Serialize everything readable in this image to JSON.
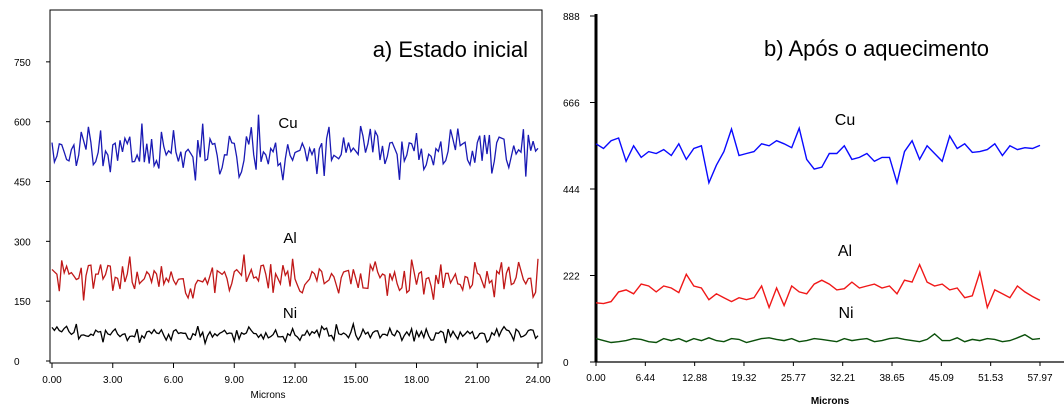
{
  "chart_data": [
    {
      "type": "line",
      "title": "a) Estado inicial",
      "xlabel": "Microns",
      "ylabel": "",
      "xlim": [
        0,
        24
      ],
      "ylim": [
        0,
        880
      ],
      "x_ticks": [
        "0.00",
        "3.00",
        "6.00",
        "9.00",
        "12.00",
        "15.00",
        "18.00",
        "21.00",
        "24.00"
      ],
      "y_ticks": [
        "0",
        "150",
        "300",
        "450",
        "600",
        "750"
      ],
      "grid": false,
      "series": [
        {
          "name": "Cu",
          "color": "#1a1ab4",
          "mean": 525,
          "amplitude": 32,
          "points": 200,
          "seed": 11
        },
        {
          "name": "Al",
          "color": "#c01818",
          "mean": 210,
          "amplitude": 24,
          "points": 200,
          "seed": 23
        },
        {
          "name": "Ni",
          "color": "#000000",
          "mean": 68,
          "amplitude": 10,
          "points": 200,
          "seed": 37
        }
      ]
    },
    {
      "type": "line",
      "title": "b) Após o aquecimento",
      "xlabel": "Microns",
      "ylabel": "",
      "xlim": [
        0,
        57.97
      ],
      "ylim": [
        0,
        888
      ],
      "x_ticks": [
        "0.00",
        "6.44",
        "12.88",
        "19.32",
        "25.77",
        "32.21",
        "38.65",
        "45.09",
        "51.53",
        "57.97"
      ],
      "y_ticks": [
        "0",
        "222",
        "444",
        "666",
        "888"
      ],
      "grid": false,
      "series": [
        {
          "name": "Cu",
          "color": "#0a0aff",
          "values": [
            560,
            548,
            568,
            575,
            515,
            555,
            525,
            540,
            535,
            545,
            530,
            560,
            520,
            548,
            555,
            460,
            505,
            540,
            598,
            530,
            535,
            540,
            560,
            555,
            568,
            560,
            550,
            600,
            520,
            495,
            500,
            535,
            535,
            555,
            520,
            525,
            535,
            515,
            525,
            525,
            460,
            540,
            568,
            520,
            555,
            535,
            515,
            580,
            548,
            560,
            538,
            540,
            545,
            560,
            530,
            555,
            545,
            550,
            548,
            556
          ]
        },
        {
          "name": "Al",
          "color": "#f01818",
          "values": [
            152,
            150,
            155,
            180,
            185,
            175,
            200,
            195,
            180,
            195,
            190,
            178,
            225,
            195,
            190,
            160,
            175,
            165,
            155,
            165,
            160,
            165,
            195,
            140,
            190,
            145,
            195,
            180,
            175,
            200,
            210,
            200,
            185,
            188,
            205,
            190,
            195,
            200,
            190,
            195,
            175,
            210,
            205,
            250,
            205,
            195,
            200,
            185,
            190,
            165,
            170,
            230,
            140,
            185,
            175,
            165,
            195,
            180,
            168,
            158
          ]
        },
        {
          "name": "Ni",
          "color": "#0a500a",
          "values": [
            60,
            55,
            50,
            52,
            55,
            60,
            58,
            52,
            50,
            60,
            55,
            60,
            52,
            60,
            55,
            62,
            55,
            52,
            60,
            58,
            50,
            55,
            60,
            62,
            58,
            55,
            60,
            52,
            55,
            60,
            58,
            55,
            52,
            60,
            55,
            58,
            60,
            52,
            55,
            60,
            62,
            58,
            55,
            52,
            58,
            72,
            55,
            55,
            62,
            52,
            58,
            55,
            60,
            58,
            52,
            55,
            62,
            70,
            58,
            60
          ]
        }
      ]
    }
  ]
}
